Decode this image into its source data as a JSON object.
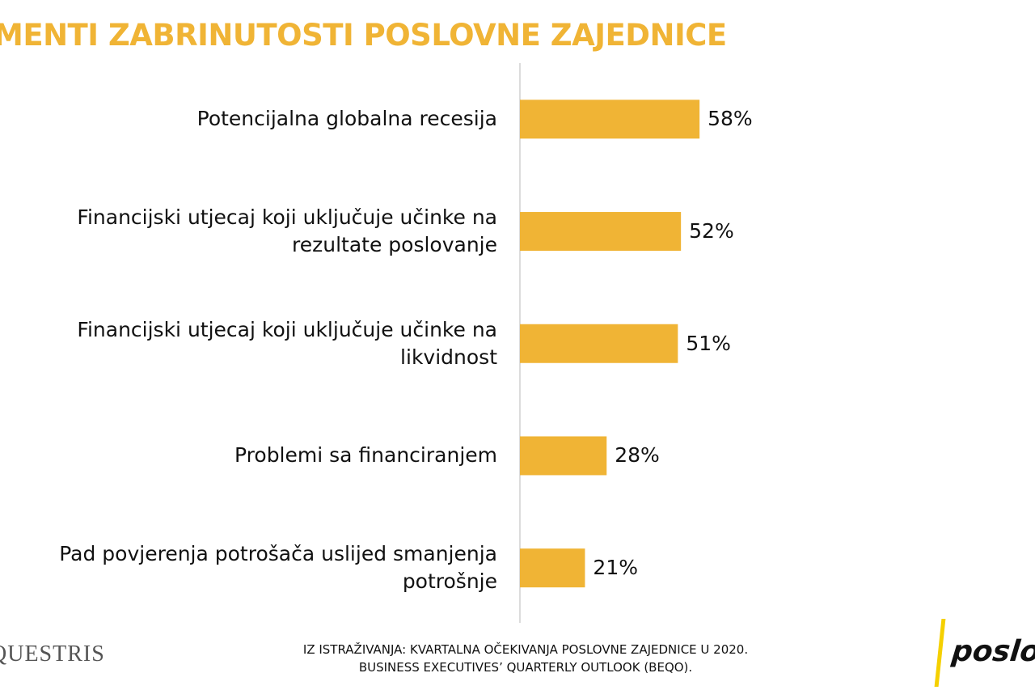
{
  "chart_data": {
    "type": "bar",
    "orientation": "horizontal",
    "title": "MENTI ZABRINUTOSTI POSLOVNE ZAJEDNICE",
    "categories": [
      "Potencijalna globalna recesija",
      "Financijski utjecaj koji uključuje učinke na rezultate poslovanje",
      "Financijski utjecaj koji uključuje učinke na likvidnost",
      "Problemi sa financiranjem",
      "Pad povjerenja potrošača uslijed smanjenja potrošnje"
    ],
    "values": [
      58,
      52,
      51,
      28,
      21
    ],
    "value_labels": [
      "58%",
      "52%",
      "51%",
      "28%",
      "21%"
    ],
    "color": "#f0b435",
    "source": [
      "IZ ISTRAŽIVANJA: KVARTALNA OČEKIVANJA POSLOVNE ZAJEDNICE U 2020.",
      "BUSINESS EXECUTIVES’ QUARTERLY OUTLOOK (BEQO)."
    ],
    "logos": [
      "QUESTRIS",
      "poslovn"
    ]
  }
}
